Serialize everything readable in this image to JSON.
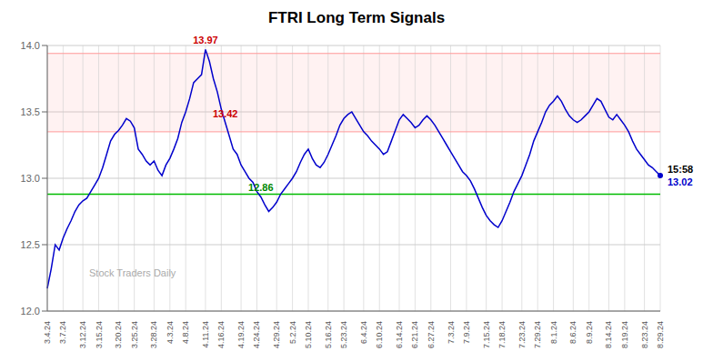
{
  "chart_data": {
    "type": "line",
    "title": "FTRI Long Term Signals",
    "watermark": "Stock Traders Daily",
    "categories": [
      "3.4.24",
      null,
      null,
      null,
      "3.7.24",
      null,
      null,
      null,
      null,
      "3.12.24",
      null,
      null,
      null,
      "3.15.24",
      null,
      null,
      null,
      null,
      "3.20.24",
      null,
      null,
      null,
      "3.25.24",
      null,
      null,
      null,
      null,
      "3.28.24",
      null,
      null,
      null,
      "4.3.24",
      null,
      null,
      null,
      "4.8.24",
      null,
      null,
      null,
      null,
      "4.11.24",
      null,
      null,
      null,
      "4.16.24",
      null,
      null,
      null,
      null,
      "4.19.24",
      null,
      null,
      null,
      "4.24.24",
      null,
      null,
      null,
      null,
      "4.29.24",
      null,
      null,
      null,
      "5.2.24",
      null,
      null,
      null,
      "5.10.24",
      null,
      null,
      null,
      null,
      "5.16.24",
      null,
      null,
      null,
      "5.23.24",
      null,
      null,
      null,
      null,
      "6.4.24",
      null,
      null,
      null,
      "6.10.24",
      null,
      null,
      null,
      null,
      "6.14.24",
      null,
      null,
      null,
      "6.21.24",
      null,
      null,
      null,
      "6.27.24",
      null,
      null,
      null,
      null,
      "7.3.24",
      null,
      null,
      null,
      "7.9.24",
      null,
      null,
      null,
      null,
      "7.15.24",
      null,
      null,
      null,
      "7.18.24",
      null,
      null,
      null,
      null,
      "7.23.24",
      null,
      null,
      null,
      "7.29.24",
      null,
      null,
      null,
      "8.1.24",
      null,
      null,
      null,
      null,
      "8.6.24",
      null,
      null,
      null,
      "8.9.24",
      null,
      null,
      null,
      null,
      "8.14.24",
      null,
      null,
      null,
      "8.19.24",
      null,
      null,
      null,
      null,
      "8.23.24",
      null,
      null,
      null,
      "8.29.24"
    ],
    "values": [
      12.17,
      12.32,
      12.5,
      12.46,
      12.55,
      12.62,
      12.68,
      12.75,
      12.8,
      12.83,
      12.85,
      12.9,
      12.95,
      13.0,
      13.08,
      13.18,
      13.28,
      13.33,
      13.36,
      13.4,
      13.45,
      13.43,
      13.38,
      13.22,
      13.18,
      13.13,
      13.1,
      13.13,
      13.06,
      13.02,
      13.1,
      13.15,
      13.22,
      13.3,
      13.42,
      13.5,
      13.6,
      13.72,
      13.75,
      13.78,
      13.97,
      13.88,
      13.75,
      13.65,
      13.52,
      13.42,
      13.32,
      13.22,
      13.18,
      13.1,
      13.05,
      13.0,
      12.97,
      12.9,
      12.86,
      12.8,
      12.75,
      12.78,
      12.82,
      12.88,
      12.92,
      12.96,
      13.0,
      13.05,
      13.12,
      13.18,
      13.22,
      13.15,
      13.1,
      13.08,
      13.12,
      13.18,
      13.25,
      13.32,
      13.4,
      13.45,
      13.48,
      13.5,
      13.45,
      13.4,
      13.35,
      13.32,
      13.28,
      13.25,
      13.22,
      13.18,
      13.2,
      13.28,
      13.36,
      13.44,
      13.48,
      13.45,
      13.42,
      13.38,
      13.4,
      13.44,
      13.47,
      13.44,
      13.4,
      13.35,
      13.3,
      13.25,
      13.2,
      13.15,
      13.1,
      13.05,
      13.02,
      12.98,
      12.92,
      12.85,
      12.78,
      12.72,
      12.68,
      12.65,
      12.63,
      12.68,
      12.75,
      12.82,
      12.9,
      12.96,
      13.02,
      13.1,
      13.18,
      13.28,
      13.35,
      13.42,
      13.5,
      13.55,
      13.58,
      13.62,
      13.58,
      13.52,
      13.47,
      13.44,
      13.42,
      13.44,
      13.47,
      13.5,
      13.55,
      13.6,
      13.58,
      13.52,
      13.46,
      13.44,
      13.48,
      13.44,
      13.4,
      13.35,
      13.28,
      13.22,
      13.18,
      13.14,
      13.1,
      13.08,
      13.05,
      13.02
    ],
    "color": "#0000cc",
    "ylim": [
      12.0,
      14.0
    ],
    "yticks": [
      {
        "value": 12.0,
        "label": "12.0"
      },
      {
        "value": 12.5,
        "label": "12.5"
      },
      {
        "value": 13.0,
        "label": "13.0"
      },
      {
        "value": 13.5,
        "label": "13.5"
      },
      {
        "value": 14.0,
        "label": "14.0"
      }
    ],
    "grid": true,
    "band": {
      "y_from": 13.35,
      "y_to": 13.94,
      "color": "#ffaaaa"
    },
    "reference_lines": [
      {
        "y": 13.94,
        "color": "#ff9999"
      },
      {
        "y": 13.35,
        "color": "#ff9999"
      },
      {
        "y": 12.88,
        "color": "#00bb00"
      }
    ],
    "annotations": [
      {
        "text": "13.97",
        "x": 40,
        "y": 13.97,
        "color": "#cc0000",
        "position": "top"
      },
      {
        "text": "13.42",
        "x": 45,
        "y": 13.42,
        "color": "#cc0000",
        "position": "top"
      },
      {
        "text": "12.86",
        "x": 54,
        "y": 12.86,
        "color": "#008800",
        "position": "top"
      },
      {
        "text": "15:58",
        "x": 155,
        "y": 13.02,
        "color": "#000000",
        "position": "right-top"
      },
      {
        "text": "13.02",
        "x": 155,
        "y": 13.02,
        "color": "#0000cc",
        "position": "right-bottom"
      }
    ]
  }
}
